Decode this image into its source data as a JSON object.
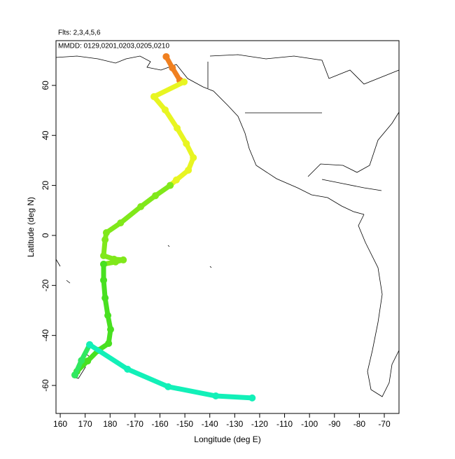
{
  "chart_data": {
    "type": "line",
    "title": "Flts: 2,3,4,5,6",
    "subtitle": "MMDD: 0129,0201,0203,0205,0210",
    "x_label": "Longitude (deg E)",
    "y_label": "Latitude (deg N)",
    "xlim": [
      158.3,
      295.9
    ],
    "ylim": [
      -71.2,
      77.9
    ],
    "xticks": [
      160,
      170,
      180,
      {
        "value": 190,
        "label": "-170"
      },
      {
        "value": 200,
        "label": "-160"
      },
      {
        "value": 210,
        "label": "-150"
      },
      {
        "value": 220,
        "label": "-140"
      },
      {
        "value": 230,
        "label": "-130"
      },
      {
        "value": 240,
        "label": "-120"
      },
      {
        "value": 250,
        "label": "-110"
      },
      {
        "value": 260,
        "label": "-100"
      },
      {
        "value": 270,
        "label": "-90"
      },
      {
        "value": 280,
        "label": "-80"
      },
      {
        "value": 290,
        "label": "-70"
      }
    ],
    "yticks": [
      -60,
      -40,
      -20,
      0,
      20,
      40,
      60
    ],
    "series": [
      {
        "color": "#f08020",
        "x": [
          202.5,
          205,
          208
        ],
        "values": [
          71.5,
          67,
          62
        ]
      },
      {
        "color": "#e8f522",
        "x": [
          209.7,
          197.6,
          202.1,
          206.9,
          210.6,
          213.4,
          211.4,
          206.6,
          204.1
        ],
        "values": [
          61.4,
          55.5,
          50.2,
          42.9,
          36.7,
          31.1,
          26.1,
          22.2,
          20
        ]
      },
      {
        "color": "#80e81a",
        "x": [
          204.1,
          198.2,
          192.3,
          184.2,
          178.5,
          178,
          177.4,
          181.6,
          185.3,
          182.2,
          177.4
        ],
        "values": [
          20,
          15.9,
          11.5,
          5.0,
          1.1,
          -1.7,
          -8.1,
          -9.5,
          -9.8,
          -10.6,
          -11.5
        ]
      },
      {
        "color": "#48e020",
        "x": [
          177.4,
          177.4,
          178,
          179.1,
          180.2,
          179.4,
          175.2,
          171,
          166.7,
          165.9
        ],
        "values": [
          -11.5,
          -17.9,
          -25,
          -32,
          -37.6,
          -43.2,
          -46,
          -50.2,
          -54.4,
          -55.8
        ]
      },
      {
        "color": "#30e860",
        "x": [
          165.9,
          168.5,
          171.8
        ],
        "values": [
          -55.8,
          -50,
          -43.7
        ]
      },
      {
        "color": "#12f0b8",
        "x": [
          171.8,
          187,
          203.3,
          222.4,
          237
        ],
        "values": [
          -43.7,
          -53.5,
          -60.5,
          -64.2,
          -65
        ]
      }
    ]
  }
}
